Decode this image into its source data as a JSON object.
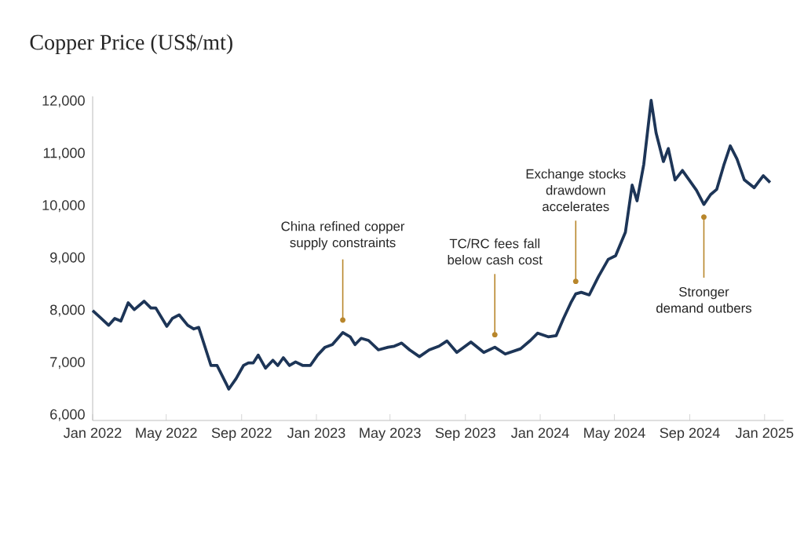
{
  "chart_data": {
    "type": "line",
    "title": "Copper Price (US$/mt)",
    "color": "#1d3557",
    "marker": "none",
    "line_style": "solid",
    "x": [
      "2022-01-01",
      "2022-01-15",
      "2022-01-27",
      "2022-02-06",
      "2022-02-16",
      "2022-02-28",
      "2022-03-10",
      "2022-03-26",
      "2022-04-06",
      "2022-04-14",
      "2022-05-02",
      "2022-05-11",
      "2022-05-22",
      "2022-06-05",
      "2022-06-15",
      "2022-06-23",
      "2022-07-13",
      "2022-07-23",
      "2022-08-07",
      "2022-08-11",
      "2022-08-23",
      "2022-09-04",
      "2022-09-12",
      "2022-09-20",
      "2022-09-28",
      "2022-10-10",
      "2022-10-22",
      "2022-10-30",
      "2022-11-08",
      "2022-11-18",
      "2022-11-28",
      "2022-12-10",
      "2022-12-22",
      "2023-01-03",
      "2023-01-15",
      "2023-01-27",
      "2023-02-13",
      "2023-02-25",
      "2023-03-05",
      "2023-03-15",
      "2023-03-27",
      "2023-04-12",
      "2023-04-28",
      "2023-05-08",
      "2023-05-20",
      "2023-06-02",
      "2023-06-18",
      "2023-07-04",
      "2023-07-20",
      "2023-08-02",
      "2023-08-18",
      "2023-09-10",
      "2023-10-01",
      "2023-10-19",
      "2023-11-05",
      "2023-11-30",
      "2023-12-16",
      "2023-12-28",
      "2024-01-14",
      "2024-01-27",
      "2024-02-08",
      "2024-02-20",
      "2024-02-28",
      "2024-03-08",
      "2024-03-21",
      "2024-04-05",
      "2024-04-21",
      "2024-05-03",
      "2024-05-19",
      "2024-05-30",
      "2024-06-07",
      "2024-06-18",
      "2024-06-30",
      "2024-07-08",
      "2024-07-20",
      "2024-07-28",
      "2024-08-08",
      "2024-08-20",
      "2024-08-31",
      "2024-09-12",
      "2024-09-24",
      "2024-10-05",
      "2024-10-15",
      "2024-10-27",
      "2024-11-06",
      "2024-11-17",
      "2024-11-29",
      "2024-12-15",
      "2024-12-30",
      "2025-01-10"
    ],
    "values": [
      8000,
      7850,
      7720,
      7850,
      7800,
      8150,
      8020,
      8180,
      8050,
      8050,
      7700,
      7850,
      7920,
      7720,
      7650,
      7680,
      6950,
      6950,
      6600,
      6500,
      6700,
      6950,
      7000,
      7000,
      7150,
      6900,
      7050,
      6950,
      7100,
      6950,
      7020,
      6950,
      6950,
      7150,
      7300,
      7350,
      7580,
      7500,
      7350,
      7470,
      7430,
      7250,
      7300,
      7320,
      7380,
      7250,
      7120,
      7250,
      7320,
      7420,
      7200,
      7400,
      7200,
      7300,
      7170,
      7270,
      7430,
      7570,
      7500,
      7520,
      7850,
      8150,
      8320,
      8350,
      8300,
      8650,
      8980,
      9050,
      9500,
      10400,
      10100,
      10800,
      12020,
      11400,
      10850,
      11100,
      10500,
      10680,
      10500,
      10300,
      10030,
      10220,
      10320,
      10800,
      11150,
      10900,
      10500,
      10350,
      10580,
      10450
    ],
    "xlim": [
      "2022-01-01",
      "2025-02-01"
    ],
    "xticks": [
      {
        "value": "2022-01",
        "label": "Jan 2022"
      },
      {
        "value": "2022-05",
        "label": "May 2022"
      },
      {
        "value": "2022-09",
        "label": "Sep 2022"
      },
      {
        "value": "2023-01",
        "label": "Jan 2023"
      },
      {
        "value": "2023-05",
        "label": "May 2023"
      },
      {
        "value": "2023-09",
        "label": "Sep 2023"
      },
      {
        "value": "2024-01",
        "label": "Jan 2024"
      },
      {
        "value": "2024-05",
        "label": "May 2024"
      },
      {
        "value": "2024-09",
        "label": "Sep 2024"
      },
      {
        "value": "2025-01",
        "label": "Jan 2025"
      }
    ],
    "ylim": [
      5900,
      12100
    ],
    "yticks": [
      {
        "value": 6000,
        "label": "6,000"
      },
      {
        "value": 7000,
        "label": "7,000"
      },
      {
        "value": 8000,
        "label": "8,000"
      },
      {
        "value": 9000,
        "label": "9,000"
      },
      {
        "value": 10000,
        "label": "10,000"
      },
      {
        "value": 11000,
        "label": "11,000"
      },
      {
        "value": 12000,
        "label": "12,000"
      }
    ],
    "annotations": [
      {
        "text": "China refined copper supply constraints",
        "x": "2023-02-13",
        "y": 7580
      },
      {
        "text": "TC/RC fees fall below cash cost",
        "x": "2023-10-19",
        "y": 7300
      },
      {
        "text": "Exchange stocks drawdown accelerates",
        "x": "2024-02-28",
        "y": 8320
      },
      {
        "text": "Stronger demand outbers",
        "x": "2024-09-24",
        "y": 10030
      }
    ]
  }
}
